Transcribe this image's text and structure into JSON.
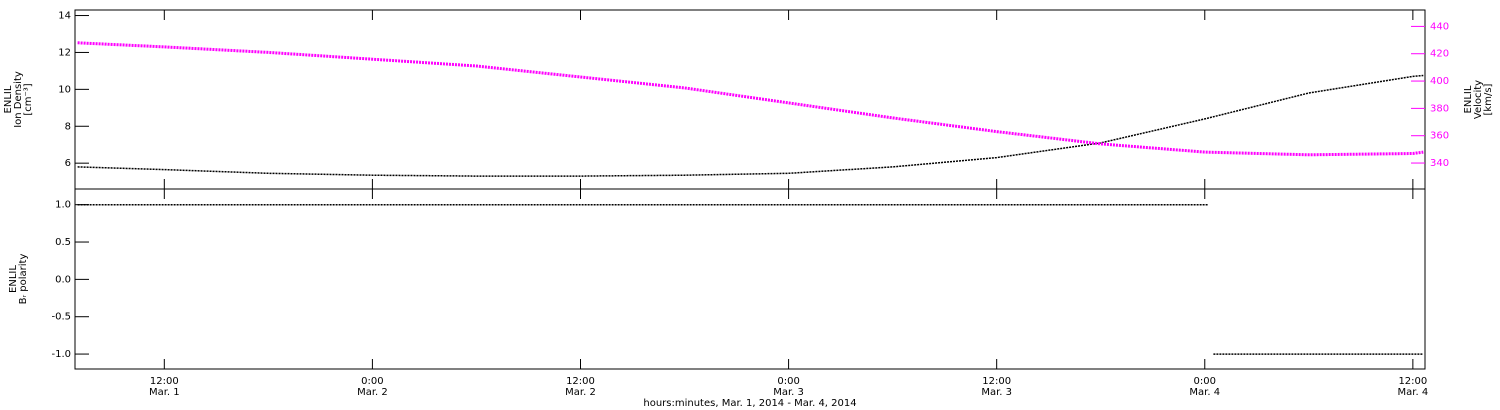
{
  "chart_data": [
    {
      "type": "line",
      "ylabel": [
        "ENLIL",
        "Ion Density",
        "[cm⁻³]"
      ],
      "y2label": [
        "ENLIL",
        "Velocity",
        "[km/s]"
      ],
      "x": [
        7,
        12,
        18,
        24,
        30,
        36,
        42,
        48,
        54,
        60,
        66,
        72,
        78,
        84,
        84.6
      ],
      "xlim": [
        6.85,
        84.7
      ],
      "ylim": [
        4.6,
        14.3
      ],
      "yticks": [
        6,
        8,
        10,
        12,
        14
      ],
      "y2lim": [
        321,
        452
      ],
      "y2ticks": [
        340,
        360,
        380,
        400,
        420,
        440
      ],
      "y2color": "#ff00ff",
      "series": [
        {
          "color": "#000000",
          "values": [
            5.8,
            5.65,
            5.45,
            5.35,
            5.3,
            5.3,
            5.35,
            5.45,
            5.8,
            6.3,
            7.1,
            8.4,
            9.8,
            10.7,
            10.75
          ]
        },
        {
          "color": "#ff00ff",
          "axis": "y2",
          "values": [
            428,
            425,
            421,
            416,
            411,
            403,
            395,
            384,
            373,
            363,
            354,
            348,
            346,
            347,
            348
          ]
        }
      ]
    },
    {
      "type": "line",
      "ylabel": [
        "ENLIL",
        "Bᵣ polarity"
      ],
      "xlabel": "hours:minutes, Mar.  1, 2014 - Mar.  4, 2014",
      "x": [
        7,
        12,
        18,
        24,
        30,
        36,
        42,
        48,
        54,
        60,
        66,
        72.2,
        72.3,
        72.5,
        78,
        84.6
      ],
      "xlim": [
        6.85,
        84.7
      ],
      "xticks": [
        {
          "value": 12,
          "label": "12:00"
        },
        {
          "value": 24,
          "label": "0:00"
        },
        {
          "value": 36,
          "label": "12:00"
        },
        {
          "value": 48,
          "label": "0:00"
        },
        {
          "value": 60,
          "label": "12:00"
        },
        {
          "value": 72,
          "label": "0:00"
        },
        {
          "value": 84,
          "label": "12:00"
        }
      ],
      "xtick_dates": [
        "Mar. 1",
        "Mar. 2",
        "Mar. 2",
        "Mar. 3",
        "Mar. 3",
        "Mar. 4",
        "Mar. 4"
      ],
      "ylim": [
        -1.2,
        1.21
      ],
      "yticks": [
        {
          "value": 1,
          "label": "1.0"
        },
        0.5,
        {
          "value": 0,
          "label": "0.0"
        },
        -0.5,
        {
          "value": -1,
          "label": "-1.0"
        }
      ],
      "series": [
        {
          "color": "#000000",
          "values": [
            1,
            1,
            1,
            1,
            1,
            1,
            1,
            1,
            1,
            1,
            1,
            1,
            null,
            -1,
            -1,
            -1
          ]
        }
      ]
    }
  ]
}
